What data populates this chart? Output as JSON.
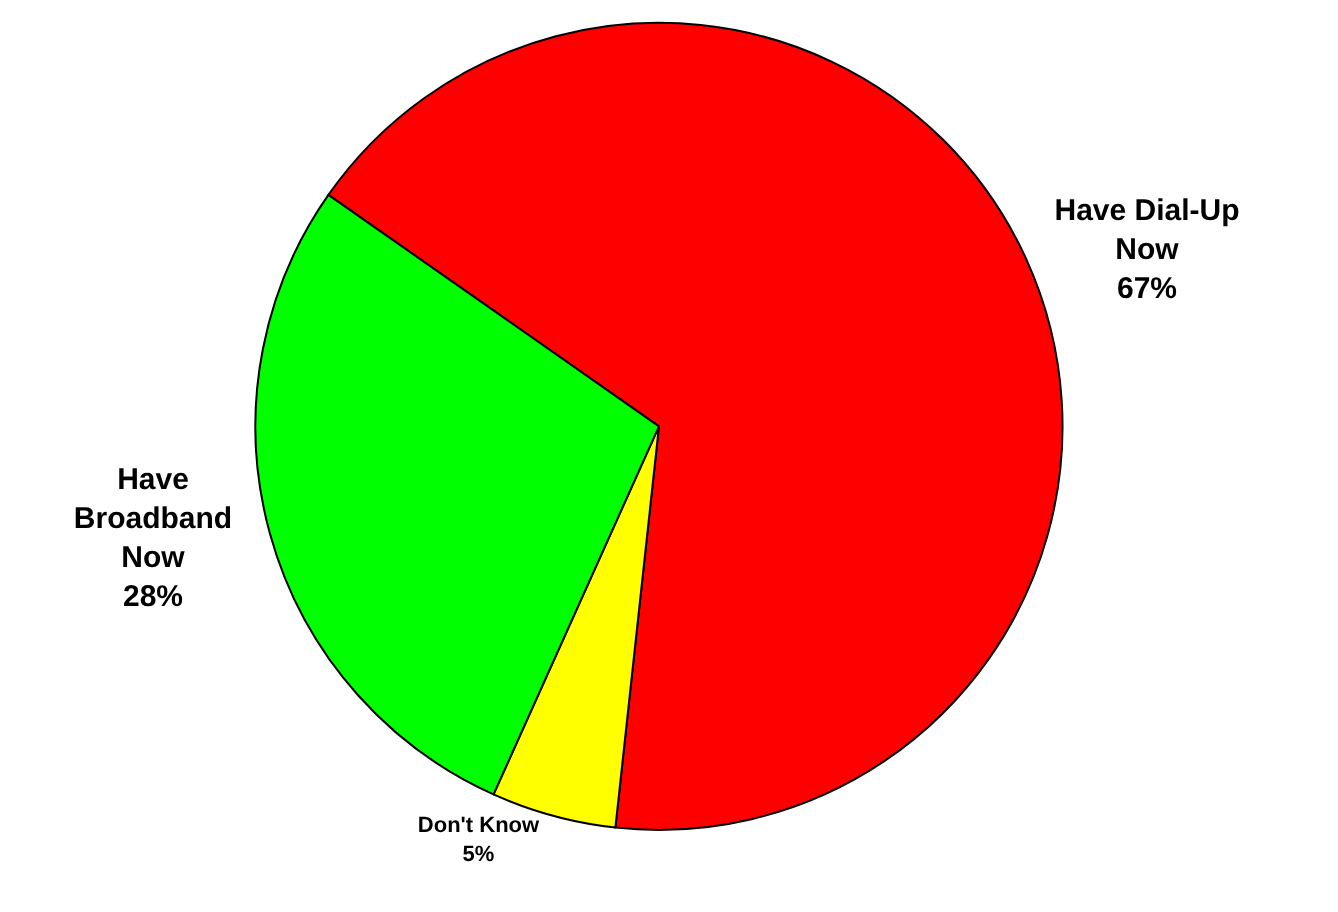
{
  "chart_data": {
    "type": "pie",
    "categories": [
      "Have Dial-Up Now",
      "Don't Know",
      "Have Broadband Now"
    ],
    "values": [
      67,
      5,
      28
    ],
    "colors": [
      "#ff0000",
      "#ffff00",
      "#00ff00"
    ],
    "value_labels": [
      "67%",
      "5%",
      "28%"
    ]
  }
}
